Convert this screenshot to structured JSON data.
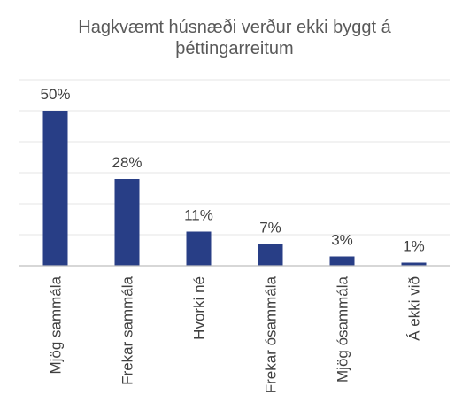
{
  "chart_data": {
    "type": "bar",
    "title_lines": [
      "Hagkvæmt húsnæði verður ekki byggt á",
      "þéttingarreitum"
    ],
    "categories": [
      "Mjög sammála",
      "Frekar sammála",
      "Hvorki né",
      "Frekar ósammála",
      "Mjög ósammála",
      "Á ekki við"
    ],
    "values": [
      50,
      28,
      11,
      7,
      3,
      1
    ],
    "data_labels": [
      "50%",
      "28%",
      "11%",
      "7%",
      "3%",
      "1%"
    ],
    "ylim": [
      0,
      60
    ],
    "grid_step": 10,
    "grid": true,
    "legend": "none",
    "colors": {
      "bar": "#283e86",
      "grid": "#e6e6e6",
      "axis": "#bfbfbf",
      "title": "#595959",
      "label": "#404040"
    }
  }
}
